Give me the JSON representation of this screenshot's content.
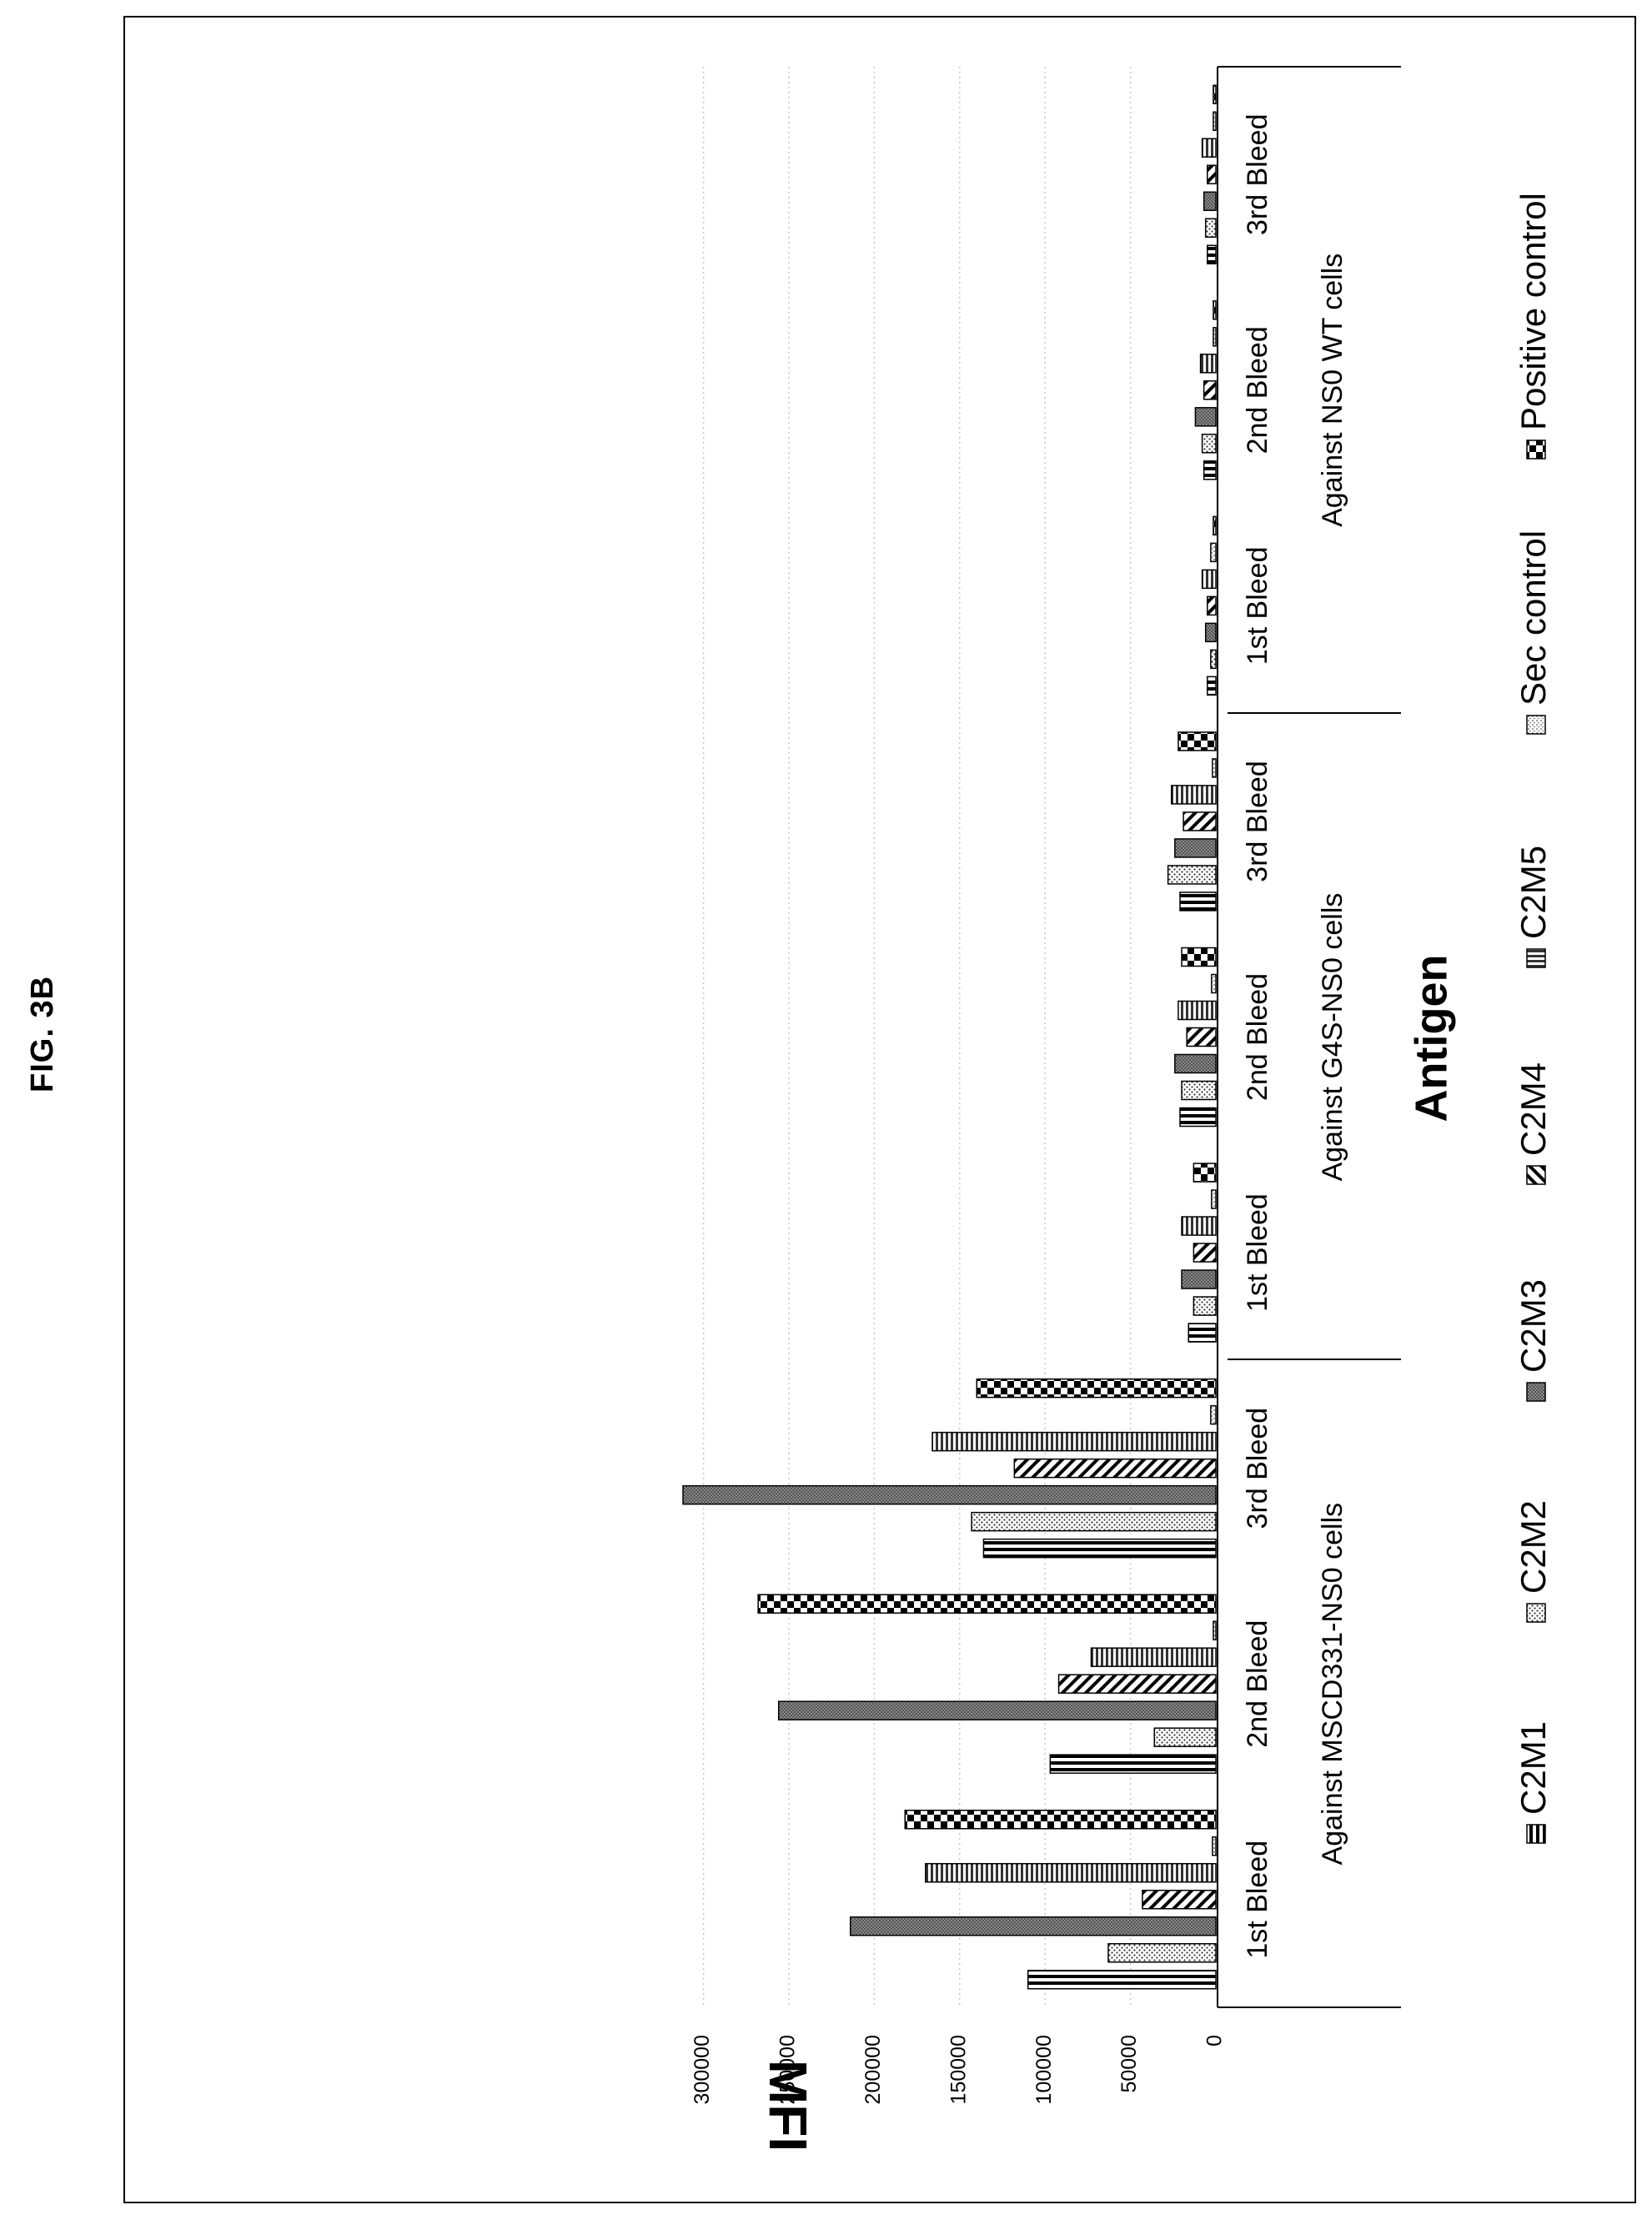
{
  "figure_label": "FIG. 3B",
  "chart_data": {
    "type": "bar",
    "ylabel": "MFI",
    "xlabel": "Antigen",
    "ylim": [
      0,
      310000
    ],
    "y_ticks": [
      0,
      50000,
      100000,
      150000,
      200000,
      250000,
      300000
    ],
    "grid": true,
    "legend_position": "bottom",
    "groups": [
      "Against MSCD331-NS0 cells",
      "Against G4S-NS0 cells",
      "Against NS0 WT cells"
    ],
    "categories": [
      "1st Bleed",
      "2nd Bleed",
      "3rd Bleed",
      "1st Bleed",
      "2nd Bleed",
      "3rd Bleed",
      "1st Bleed",
      "2nd Bleed",
      "3rd Bleed"
    ],
    "series": [
      {
        "name": "C2M1",
        "pattern": "vstripe",
        "values": [
          110000,
          97000,
          136000,
          16000,
          21000,
          21000,
          5000,
          7000,
          5000
        ]
      },
      {
        "name": "C2M2",
        "pattern": "dots",
        "values": [
          63000,
          36000,
          143000,
          13000,
          20000,
          28000,
          3000,
          8000,
          6000
        ]
      },
      {
        "name": "C2M3",
        "pattern": "dense",
        "values": [
          214000,
          256000,
          312000,
          20000,
          24000,
          24000,
          6000,
          12000,
          7000
        ]
      },
      {
        "name": "C2M4",
        "pattern": "diag",
        "values": [
          43000,
          92000,
          118000,
          13000,
          17000,
          19000,
          5000,
          7000,
          5000
        ]
      },
      {
        "name": "C2M5",
        "pattern": "hstripe",
        "values": [
          170000,
          73000,
          166000,
          20000,
          22000,
          26000,
          8000,
          9000,
          8000
        ]
      },
      {
        "name": "Sec control",
        "pattern": "speckle",
        "values": [
          2000,
          1500,
          3000,
          2500,
          2500,
          2000,
          3000,
          1500,
          1500
        ]
      },
      {
        "name": "Positive control",
        "pattern": "check",
        "values": [
          182000,
          268000,
          140000,
          13000,
          20000,
          22000,
          1500,
          1500,
          1500
        ]
      }
    ]
  }
}
